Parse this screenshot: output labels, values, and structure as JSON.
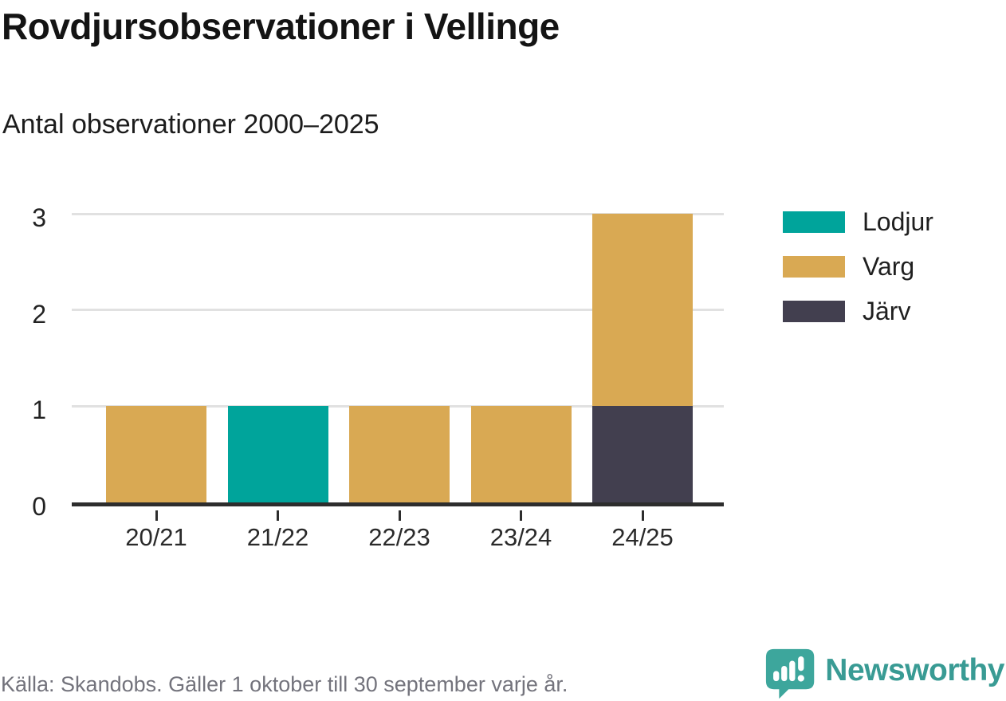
{
  "header": {
    "title": "Rovdjursobservationer i Vellinge",
    "subtitle": "Antal observationer 2000–2025"
  },
  "chart_data": {
    "type": "bar",
    "stacked": true,
    "title": "Rovdjursobservationer i Vellinge",
    "subtitle": "Antal observationer 2000–2025",
    "xlabel": "",
    "ylabel": "",
    "categories": [
      "20/21",
      "21/22",
      "22/23",
      "23/24",
      "24/25"
    ],
    "series": [
      {
        "name": "Lodjur",
        "color": "#00a49b",
        "values": [
          0,
          1,
          0,
          0,
          0
        ]
      },
      {
        "name": "Varg",
        "color": "#d9a953",
        "values": [
          1,
          0,
          1,
          1,
          2
        ]
      },
      {
        "name": "Järv",
        "color": "#423f4f",
        "values": [
          0,
          0,
          0,
          0,
          1
        ]
      }
    ],
    "stack_totals": [
      1,
      1,
      1,
      1,
      3
    ],
    "ylim": [
      0,
      3
    ],
    "yticks": [
      0,
      1,
      2,
      3
    ],
    "grid": "horizontal",
    "legend_position": "right"
  },
  "footer": {
    "source": "Källa: Skandobs. Gäller 1 oktober till 30 september varje år.",
    "brand": "Newsworthy",
    "brand_color": "#399b94",
    "brand_mark_color": "#3da69c"
  }
}
